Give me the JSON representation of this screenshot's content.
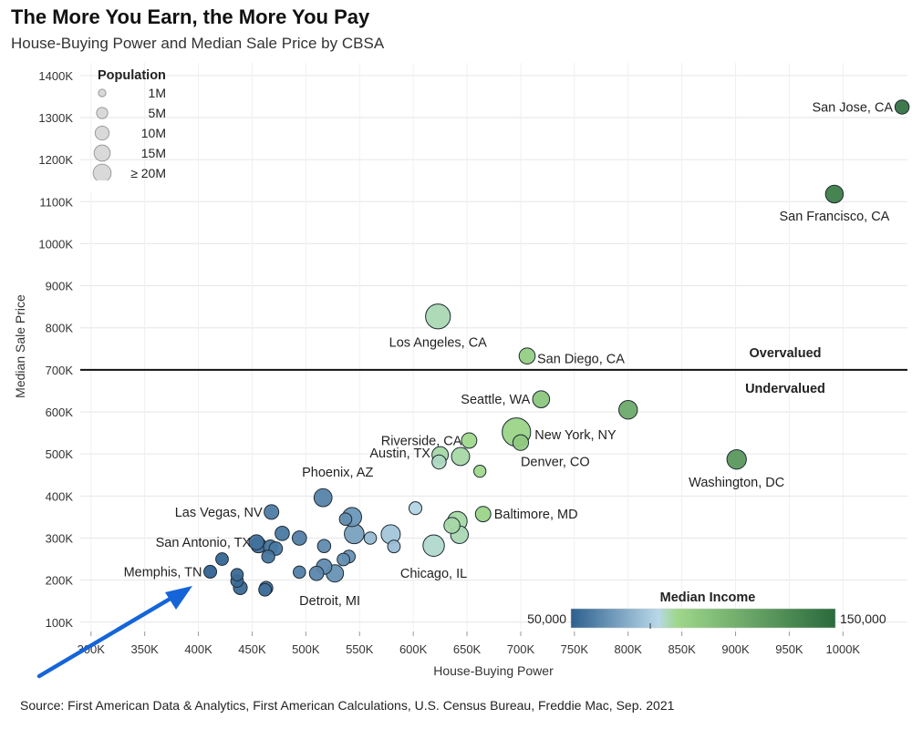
{
  "title": "The More You Earn, the More You Pay",
  "subtitle": "House-Buying Power and Median Sale Price by CBSA",
  "source": "Source: First American Data & Analytics, First American Calculations, U.S. Census Bureau, Freddie Mac, Sep. 2021",
  "colors": {
    "low": "#2d5f8e",
    "mid": "#b8d8e8",
    "midgreen": "#9fd88b",
    "high": "#2a6a3c",
    "line": "#111111"
  },
  "chart_data": {
    "type": "scatter",
    "title": "The More You Earn, the More You Pay",
    "subtitle": "House-Buying Power and Median Sale Price by CBSA",
    "xlabel": "House-Buying Power",
    "ylabel": "Median Sale Price",
    "xlim": [
      290000,
      1060000
    ],
    "ylim": [
      80000,
      1430000
    ],
    "x_ticks": [
      300000,
      350000,
      400000,
      450000,
      500000,
      550000,
      600000,
      650000,
      700000,
      750000,
      800000,
      850000,
      900000,
      950000,
      1000000
    ],
    "x_tick_labels": [
      "300K",
      "350K",
      "400K",
      "450K",
      "500K",
      "550K",
      "600K",
      "650K",
      "700K",
      "750K",
      "800K",
      "850K",
      "900K",
      "950K",
      "1000K"
    ],
    "y_ticks": [
      100000,
      200000,
      300000,
      400000,
      500000,
      600000,
      700000,
      800000,
      900000,
      1000000,
      1100000,
      1200000,
      1300000,
      1400000
    ],
    "y_tick_labels": [
      "100K",
      "200K",
      "300K",
      "400K",
      "500K",
      "600K",
      "700K",
      "800K",
      "900K",
      "1000K",
      "1100K",
      "1200K",
      "1300K",
      "1400K"
    ],
    "reference_line": {
      "y": 700000,
      "above_label": "Overvalued",
      "below_label": "Undervalued"
    },
    "size_legend": {
      "title": "Population",
      "labels": [
        "1M",
        "5M",
        "10M",
        "15M",
        "≥ 20M"
      ],
      "values": [
        1,
        5,
        10,
        15,
        20
      ]
    },
    "color_legend": {
      "title": "Median Income",
      "min_label": "50,000",
      "max_label": "150,000",
      "min": 50000,
      "max": 150000
    },
    "points": [
      {
        "x": 1055000,
        "y": 1325000,
        "pop": 2.0,
        "income": 145000,
        "label": "San Jose, CA"
      },
      {
        "x": 992000,
        "y": 1118000,
        "pop": 4.7,
        "income": 140000,
        "label": "San Francisco, CA"
      },
      {
        "x": 623000,
        "y": 827000,
        "pop": 13.2,
        "income": 87000,
        "label": "Los Angeles, CA"
      },
      {
        "x": 706000,
        "y": 733000,
        "pop": 3.3,
        "income": 95000,
        "label": "San Diego, CA"
      },
      {
        "x": 719000,
        "y": 630000,
        "pop": 4.0,
        "income": 100000,
        "label": "Seattle, WA"
      },
      {
        "x": 800000,
        "y": 605000,
        "pop": 5.5,
        "income": 115000
      },
      {
        "x": 696000,
        "y": 552000,
        "pop": 19.2,
        "income": 92000,
        "label": "New York, NY"
      },
      {
        "x": 700000,
        "y": 527000,
        "pop": 3.0,
        "income": 98000,
        "label": "Denver, CO"
      },
      {
        "x": 652000,
        "y": 532000,
        "pop": 2.8,
        "income": 90000,
        "label": "Riverside, CA"
      },
      {
        "x": 901000,
        "y": 487000,
        "pop": 6.3,
        "income": 125000,
        "label": "Washington, DC"
      },
      {
        "x": 625000,
        "y": 498000,
        "pop": 3.5,
        "income": 88000
      },
      {
        "x": 624000,
        "y": 481000,
        "pop": 2.0,
        "income": 86000
      },
      {
        "x": 644000,
        "y": 494000,
        "pop": 5.0,
        "income": 88000,
        "label": "Austin, TX"
      },
      {
        "x": 662000,
        "y": 459000,
        "pop": 1.0,
        "income": 90000
      },
      {
        "x": 516000,
        "y": 396000,
        "pop": 4.9,
        "income": 60000,
        "label": "Phoenix, AZ"
      },
      {
        "x": 602000,
        "y": 371000,
        "pop": 1.3,
        "income": 82000
      },
      {
        "x": 468000,
        "y": 362000,
        "pop": 2.3,
        "income": 58000,
        "label": "Las Vegas, NV"
      },
      {
        "x": 665000,
        "y": 357000,
        "pop": 2.8,
        "income": 92000,
        "label": "Baltimore, MD"
      },
      {
        "x": 543000,
        "y": 350000,
        "pop": 6.0,
        "income": 65000
      },
      {
        "x": 537000,
        "y": 345000,
        "pop": 1.1,
        "income": 63000
      },
      {
        "x": 641000,
        "y": 340000,
        "pop": 6.5,
        "income": 88000
      },
      {
        "x": 636000,
        "y": 330000,
        "pop": 3.2,
        "income": 88000
      },
      {
        "x": 545000,
        "y": 310000,
        "pop": 6.6,
        "income": 68000
      },
      {
        "x": 579000,
        "y": 309000,
        "pop": 6.0,
        "income": 78000
      },
      {
        "x": 643000,
        "y": 308000,
        "pop": 4.6,
        "income": 87000
      },
      {
        "x": 478000,
        "y": 311000,
        "pop": 2.1,
        "income": 57000
      },
      {
        "x": 494000,
        "y": 300000,
        "pop": 2.1,
        "income": 59000
      },
      {
        "x": 560000,
        "y": 300000,
        "pop": 1.1,
        "income": 75000
      },
      {
        "x": 454000,
        "y": 290000,
        "pop": 2.6,
        "income": 55000,
        "label": "San Antonio, TX"
      },
      {
        "x": 456000,
        "y": 283000,
        "pop": 2.7,
        "income": 54000
      },
      {
        "x": 467000,
        "y": 279000,
        "pop": 1.9,
        "income": 56000
      },
      {
        "x": 472000,
        "y": 275000,
        "pop": 1.6,
        "income": 57000
      },
      {
        "x": 517000,
        "y": 281000,
        "pop": 1.5,
        "income": 62000
      },
      {
        "x": 582000,
        "y": 280000,
        "pop": 1.2,
        "income": 76000
      },
      {
        "x": 619000,
        "y": 282000,
        "pop": 8.5,
        "income": 85000,
        "label": "Chicago, IL"
      },
      {
        "x": 465000,
        "y": 256000,
        "pop": 1.4,
        "income": 56000
      },
      {
        "x": 540000,
        "y": 256000,
        "pop": 1.3,
        "income": 64000
      },
      {
        "x": 535000,
        "y": 249000,
        "pop": 1.2,
        "income": 63000
      },
      {
        "x": 422000,
        "y": 250000,
        "pop": 1.2,
        "income": 52000
      },
      {
        "x": 517000,
        "y": 232000,
        "pop": 2.8,
        "income": 62000
      },
      {
        "x": 494000,
        "y": 219000,
        "pop": 1.1,
        "income": 59000
      },
      {
        "x": 510000,
        "y": 216000,
        "pop": 2.1,
        "income": 61000
      },
      {
        "x": 527000,
        "y": 216000,
        "pop": 4.3,
        "income": 64000,
        "label": "Detroit, MI"
      },
      {
        "x": 411000,
        "y": 220000,
        "pop": 1.3,
        "income": 51000,
        "label": "Memphis, TN"
      },
      {
        "x": 436000,
        "y": 213000,
        "pop": 1.1,
        "income": 53000
      },
      {
        "x": 436000,
        "y": 198000,
        "pop": 1.2,
        "income": 53000
      },
      {
        "x": 439000,
        "y": 182000,
        "pop": 1.8,
        "income": 53000
      },
      {
        "x": 463000,
        "y": 181000,
        "pop": 1.6,
        "income": 55000
      },
      {
        "x": 462000,
        "y": 177000,
        "pop": 1.2,
        "income": 55000
      }
    ]
  }
}
